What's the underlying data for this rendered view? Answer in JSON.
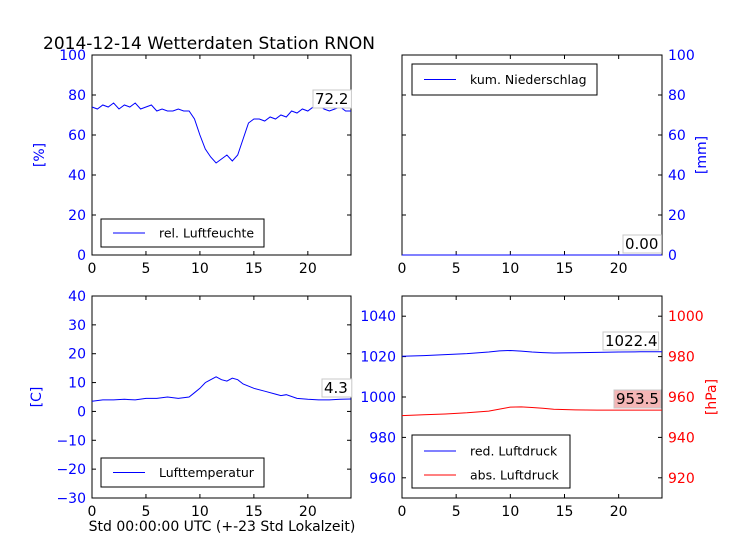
{
  "figure": {
    "title": "2014-12-14 Wetterdaten Station RNON",
    "xlabel": "Std 00:00:00 UTC (+-23 Std Lokalzeit)"
  },
  "chart_data": [
    {
      "type": "line",
      "panel": "top-left",
      "ylabel": "[%]",
      "xlim": [
        0,
        24
      ],
      "ylim": [
        0,
        100
      ],
      "xticks": [
        0,
        5,
        10,
        15,
        20
      ],
      "yticks": [
        0,
        20,
        40,
        60,
        80,
        100
      ],
      "axis_color": "#0000ff",
      "legend": "lower-left",
      "series": [
        {
          "name": "rel. Luftfeuchte",
          "color": "#0000ff",
          "x": [
            0,
            0.5,
            1,
            1.5,
            2,
            2.5,
            3,
            3.5,
            4,
            4.5,
            5,
            5.5,
            6,
            6.5,
            7,
            7.5,
            8,
            8.5,
            9,
            9.5,
            10,
            10.5,
            11,
            11.5,
            12,
            12.5,
            13,
            13.5,
            14,
            14.5,
            15,
            15.5,
            16,
            16.5,
            17,
            17.5,
            18,
            18.5,
            19,
            19.5,
            20,
            20.5,
            21,
            21.5,
            22,
            22.5,
            23,
            23.5,
            24
          ],
          "y": [
            74,
            73,
            75,
            74,
            76,
            73,
            75,
            74,
            76,
            73,
            74,
            75,
            72,
            73,
            72,
            72,
            73,
            72,
            72,
            68,
            60,
            53,
            49,
            46,
            48,
            50,
            47,
            50,
            58,
            66,
            68,
            68,
            67,
            69,
            68,
            70,
            69,
            72,
            71,
            73,
            72,
            74,
            75,
            73,
            72,
            73,
            74,
            72,
            72
          ]
        }
      ],
      "annotation": "72.2"
    },
    {
      "type": "line",
      "panel": "top-right",
      "ylabel": "[mm]",
      "xlim": [
        0,
        24
      ],
      "ylim": [
        0,
        100
      ],
      "xticks": [
        0,
        5,
        10,
        15,
        20
      ],
      "yticks": [
        0,
        20,
        40,
        60,
        80,
        100
      ],
      "axis_color": "#0000ff",
      "legend": "upper-left",
      "series": [
        {
          "name": "kum. Niederschlag",
          "color": "#0000ff",
          "x": [
            0,
            24
          ],
          "y": [
            0,
            0
          ]
        }
      ],
      "annotation": "0.00"
    },
    {
      "type": "line",
      "panel": "bottom-left",
      "ylabel": "[C]",
      "xlim": [
        0,
        24
      ],
      "ylim": [
        -30,
        40
      ],
      "xticks": [
        0,
        5,
        10,
        15,
        20
      ],
      "yticks": [
        -30,
        -20,
        -10,
        0,
        10,
        20,
        30,
        40
      ],
      "axis_color": "#0000ff",
      "legend": "lower-left",
      "series": [
        {
          "name": "Lufttemperatur",
          "color": "#0000ff",
          "x": [
            0,
            1,
            2,
            3,
            4,
            5,
            6,
            7,
            8,
            9,
            9.5,
            10,
            10.5,
            11,
            11.5,
            12,
            12.5,
            13,
            13.5,
            14,
            15,
            16,
            17,
            17.5,
            18,
            19,
            20,
            21,
            22,
            23,
            24
          ],
          "y": [
            3.5,
            4,
            4,
            4.2,
            4,
            4.5,
            4.5,
            5,
            4.5,
            5,
            6.5,
            8,
            10,
            11,
            12,
            11,
            10.5,
            11.5,
            11,
            9.5,
            8,
            7,
            6,
            5.5,
            5.8,
            4.5,
            4.2,
            4,
            4,
            4.2,
            4.3
          ]
        }
      ],
      "annotation": "4.3"
    },
    {
      "type": "line",
      "panel": "bottom-right",
      "ylabel": "[hPa]",
      "xlim": [
        0,
        24
      ],
      "ylim": [
        950,
        1050
      ],
      "ylim_right": [
        910,
        1010
      ],
      "xticks": [
        0,
        5,
        10,
        15,
        20
      ],
      "yticks": [
        960,
        980,
        1000,
        1020,
        1040
      ],
      "yticks_right": [
        920,
        940,
        960,
        980,
        1000
      ],
      "axis_color": "#0000ff",
      "axis_color_right": "#ff0000",
      "legend": "lower-left",
      "series": [
        {
          "name": "red. Luftdruck",
          "color": "#0000ff",
          "x": [
            0,
            2,
            4,
            6,
            8,
            9,
            10,
            11,
            12,
            13,
            14,
            16,
            18,
            20,
            22,
            24
          ],
          "y": [
            1020.2,
            1020.5,
            1021,
            1021.5,
            1022.3,
            1022.8,
            1023,
            1022.7,
            1022.3,
            1022,
            1021.8,
            1021.9,
            1022.1,
            1022.3,
            1022.4,
            1022.4
          ]
        },
        {
          "name": "abs. Luftdruck",
          "color": "#ff0000",
          "axis": "right",
          "x": [
            0,
            2,
            4,
            6,
            8,
            9,
            10,
            11,
            12,
            13,
            14,
            16,
            18,
            20,
            22,
            24
          ],
          "y": [
            950.8,
            951.2,
            951.6,
            952.2,
            953,
            954,
            955,
            955.1,
            954.8,
            954.4,
            953.9,
            953.6,
            953.5,
            953.5,
            953.5,
            953.5
          ]
        }
      ],
      "annotations": [
        "1022.4",
        "953.5"
      ],
      "annotation_colors": [
        "#ffffff",
        "#f4b6b6"
      ]
    }
  ]
}
